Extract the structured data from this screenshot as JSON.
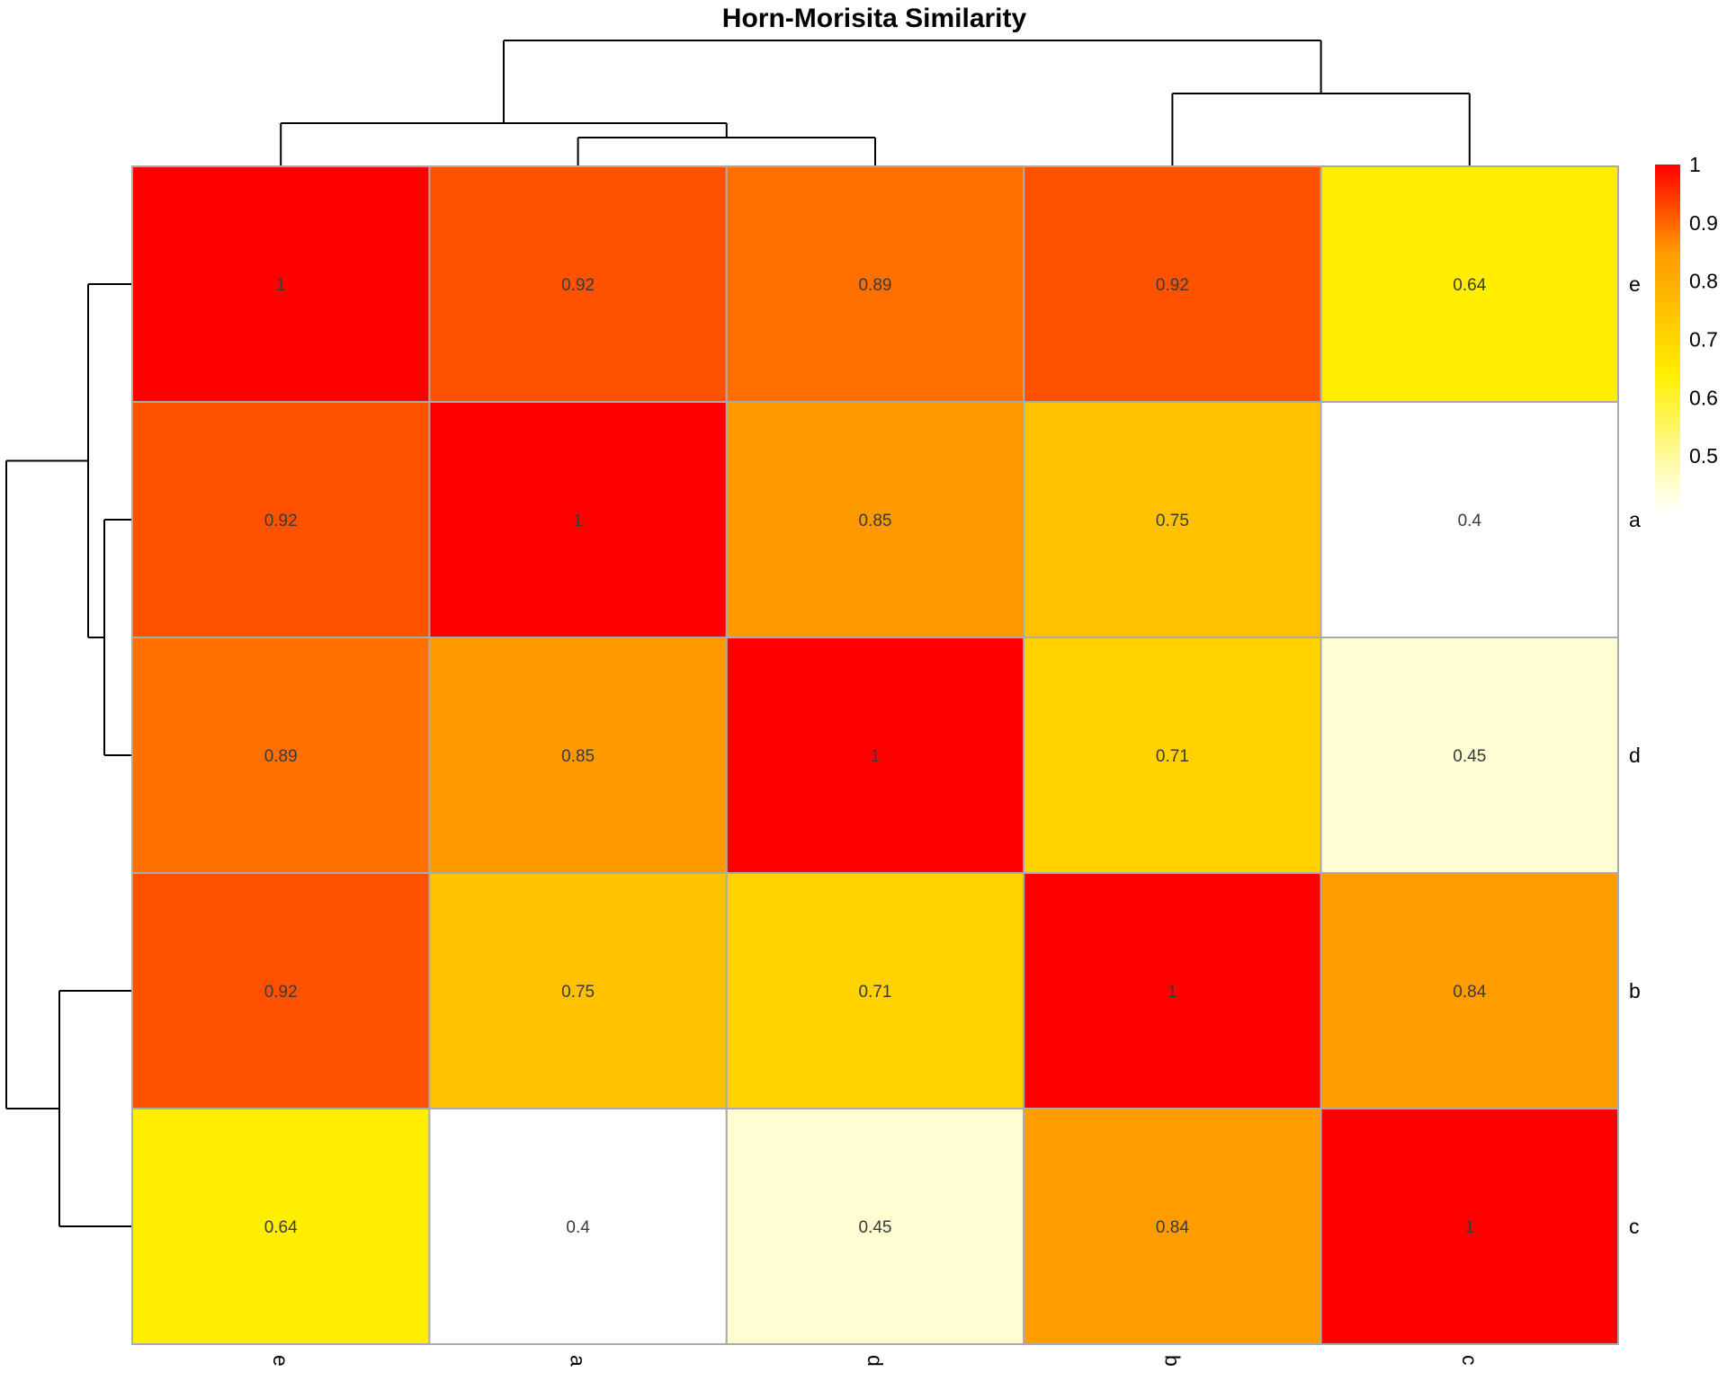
{
  "chart_data": {
    "type": "heatmap",
    "title": "Horn-Morisita Similarity",
    "row_labels": [
      "e",
      "a",
      "d",
      "b",
      "c"
    ],
    "col_labels": [
      "e",
      "a",
      "d",
      "b",
      "c"
    ],
    "values": [
      [
        1,
        0.92,
        0.89,
        0.92,
        0.64
      ],
      [
        0.92,
        1,
        0.85,
        0.75,
        0.4
      ],
      [
        0.89,
        0.85,
        1,
        0.71,
        0.45
      ],
      [
        0.92,
        0.75,
        0.71,
        1,
        0.84
      ],
      [
        0.64,
        0.4,
        0.45,
        0.84,
        1
      ]
    ],
    "cell_labels": [
      [
        "1",
        "0.92",
        "0.89",
        "0.92",
        "0.64"
      ],
      [
        "0.92",
        "1",
        "0.85",
        "0.75",
        "0.4"
      ],
      [
        "0.89",
        "0.85",
        "1",
        "0.71",
        "0.45"
      ],
      [
        "0.92",
        "0.75",
        "0.71",
        "1",
        "0.84"
      ],
      [
        "0.64",
        "0.4",
        "0.45",
        "0.84",
        "1"
      ]
    ],
    "color_range": [
      0.4,
      1
    ],
    "colors": {
      "low": "#ffffff",
      "low_mid": "#fffdc8",
      "mid": "#ffee00",
      "high_mid": "#ff9900",
      "high": "#ff0000",
      "cell_border": "#aaaaaa"
    },
    "legend": {
      "ticks": [
        1,
        0.9,
        0.8,
        0.7,
        0.6,
        0.5
      ],
      "tick_labels": [
        "1",
        "0.9",
        "0.8",
        "0.7",
        "0.6",
        "0.5"
      ],
      "placement": "right"
    },
    "dendrogram": {
      "columns": "top",
      "rows": "left",
      "merge_order": [
        [
          "a",
          "d"
        ],
        [
          "e",
          "a-d"
        ],
        [
          "b",
          "c"
        ],
        [
          "e-a-d",
          "b-c"
        ]
      ]
    }
  }
}
